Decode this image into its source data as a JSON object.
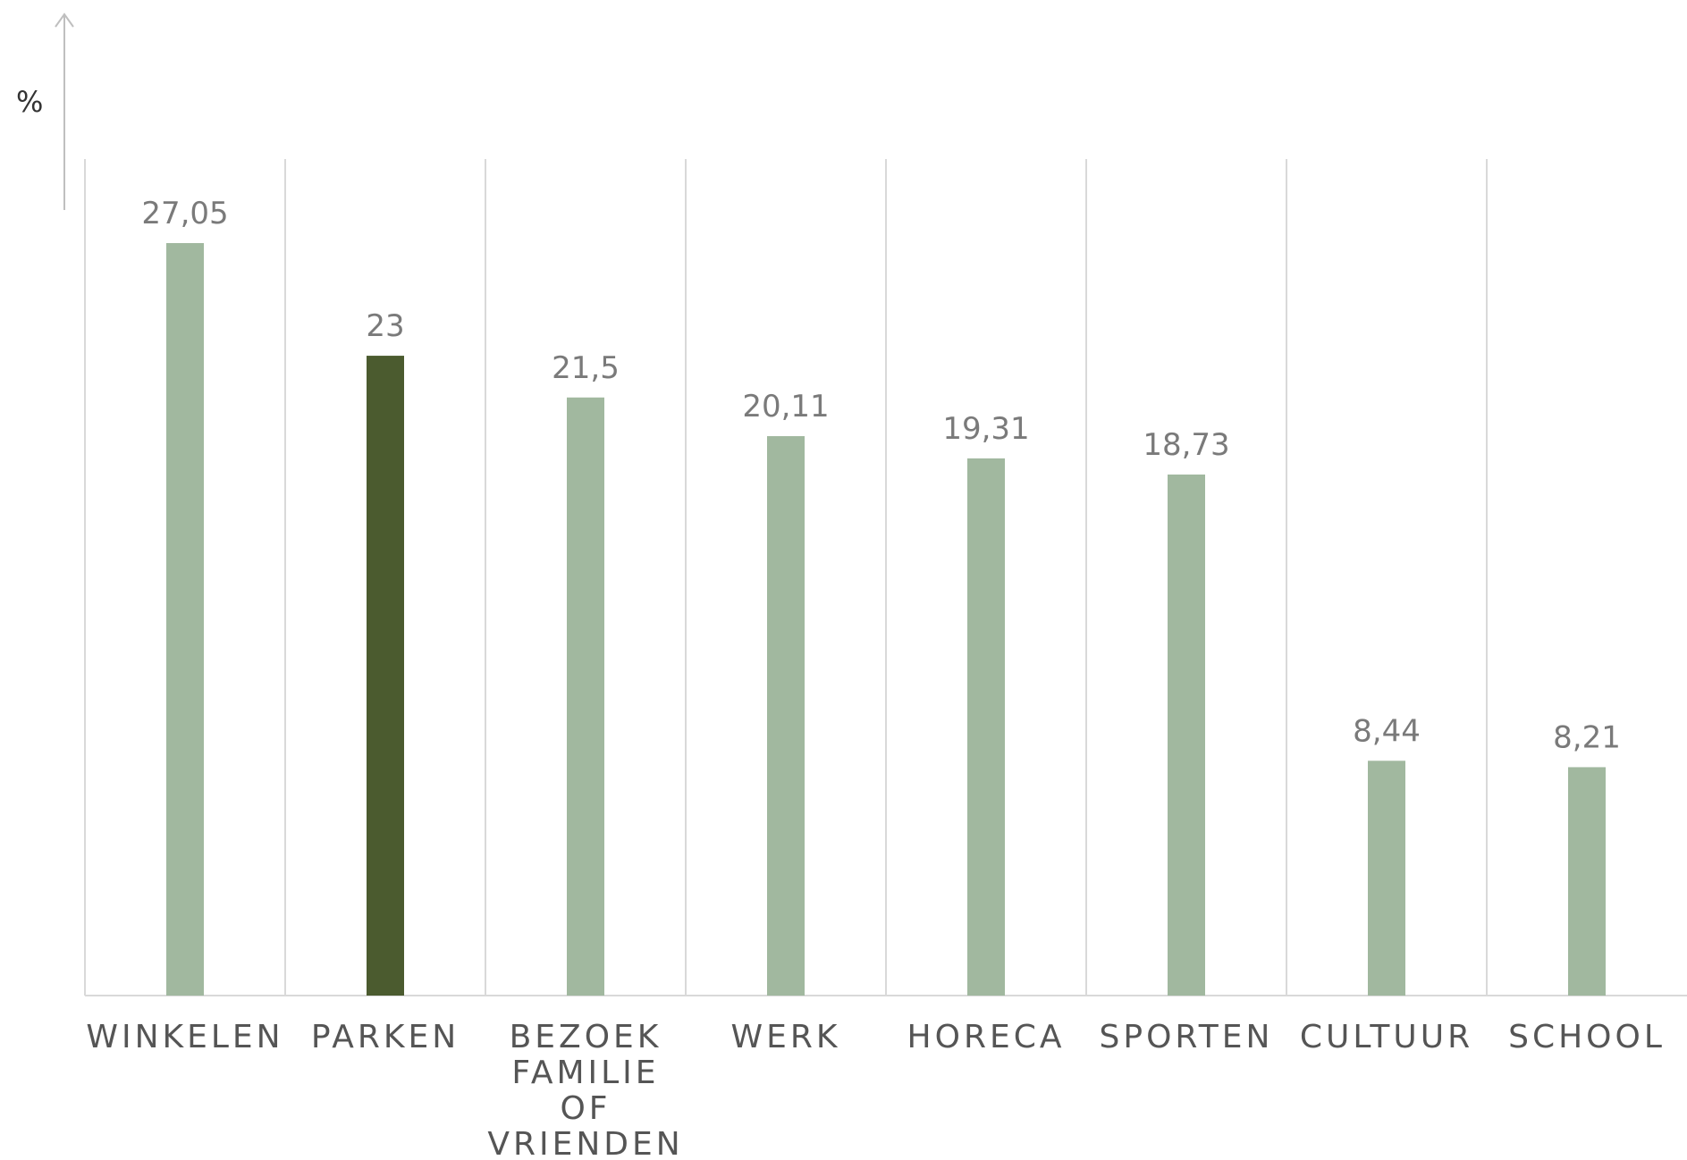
{
  "chart_data": {
    "type": "bar",
    "categories": [
      [
        "WINKELEN"
      ],
      [
        "PARKEN"
      ],
      [
        "BEZOEK",
        "FAMILIE",
        "OF",
        "VRIENDEN"
      ],
      [
        "WERK"
      ],
      [
        "HORECA"
      ],
      [
        "SPORTEN"
      ],
      [
        "CULTUUR"
      ],
      [
        "SCHOOL"
      ]
    ],
    "values": [
      27.05,
      23,
      21.5,
      20.11,
      19.31,
      18.73,
      8.44,
      8.21
    ],
    "data_labels": [
      "27,05",
      "23",
      "21,5",
      "20,11",
      "19,31",
      "18,73",
      "8,44",
      "8,21"
    ],
    "highlight_index": 1,
    "ylabel": "%",
    "ylim": [
      0,
      30
    ],
    "grid": "vertical category separators",
    "colors": {
      "bar": "#a1b89f",
      "highlight": "#4b5b2f",
      "gridline": "#d9d9d9",
      "axis_arrow": "#bfbfbf"
    }
  }
}
